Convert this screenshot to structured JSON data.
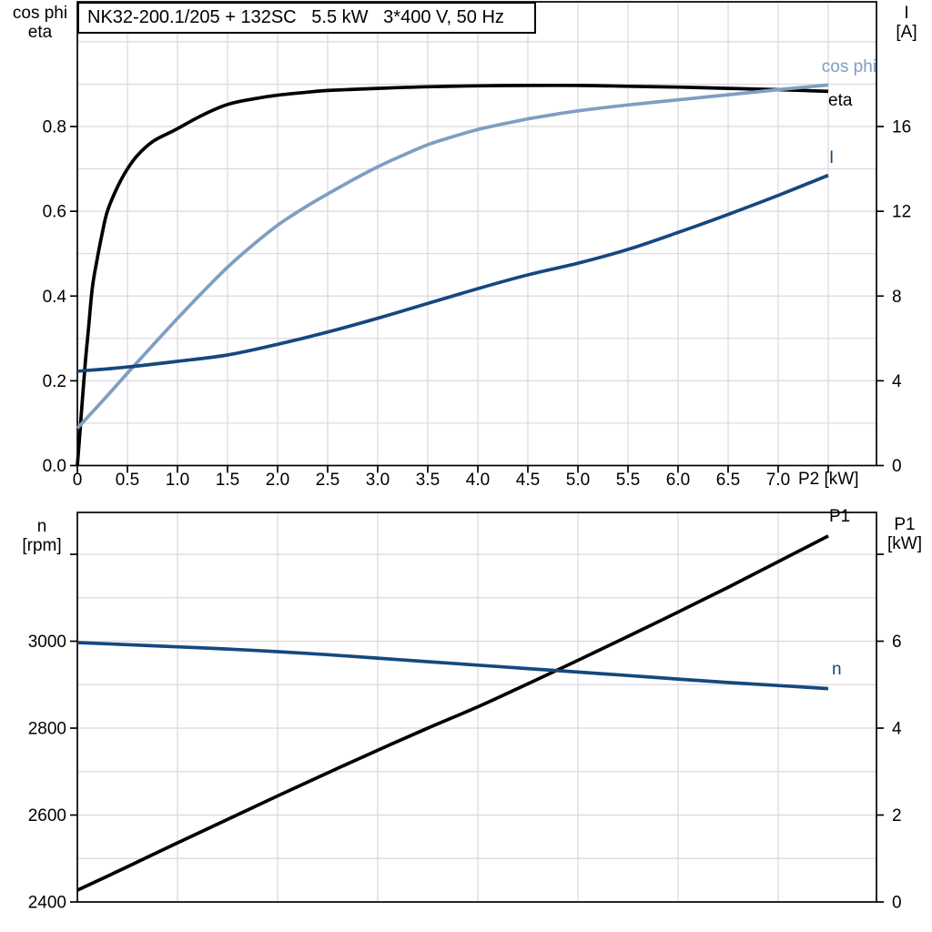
{
  "title": "NK32-200.1/205 + 132SC   5.5 kW   3*400 V, 50 Hz",
  "colors": {
    "black": "#000000",
    "light_blue": "#7E9EC3",
    "dark_blue": "#15487E",
    "grid": "#D9D9DC",
    "frame": "#000000",
    "background": "#FFFFFF"
  },
  "chart_data": [
    {
      "type": "line",
      "title": "NK32-200.1/205 + 132SC   5.5 kW   3*400 V, 50 Hz",
      "xlabel": "P2 [kW]",
      "x_range": [
        0,
        7.982
      ],
      "grid": {
        "x_step": 0.5,
        "y_step": 0.1
      },
      "x_ticks": [
        {
          "v": 0,
          "label": "0"
        },
        {
          "v": 0.5,
          "label": "0.5"
        },
        {
          "v": 1,
          "label": "1.0"
        },
        {
          "v": 1.5,
          "label": "1.5"
        },
        {
          "v": 2,
          "label": "2.0"
        },
        {
          "v": 2.5,
          "label": "2.5"
        },
        {
          "v": 3,
          "label": "3.0"
        },
        {
          "v": 3.5,
          "label": "3.5"
        },
        {
          "v": 4,
          "label": "4.0"
        },
        {
          "v": 4.5,
          "label": "4.5"
        },
        {
          "v": 5,
          "label": "5.0"
        },
        {
          "v": 5.5,
          "label": "5.5"
        },
        {
          "v": 6,
          "label": "6.0"
        },
        {
          "v": 6.5,
          "label": "6.5"
        },
        {
          "v": 7,
          "label": "7.0"
        },
        {
          "v": 7.5,
          "label": ""
        }
      ],
      "left_axis": {
        "title_lines": [
          "cos phi",
          "eta"
        ],
        "range": [
          0,
          1.0943
        ],
        "ticks": [
          {
            "v": 0.0,
            "label": "0.0"
          },
          {
            "v": 0.2,
            "label": "0.2"
          },
          {
            "v": 0.4,
            "label": "0.4"
          },
          {
            "v": 0.6,
            "label": "0.6"
          },
          {
            "v": 0.8,
            "label": "0.8"
          }
        ]
      },
      "right_axis": {
        "title_lines": [
          "I",
          "[A]"
        ],
        "range": [
          0,
          21.886
        ],
        "ticks": [
          {
            "v": 0,
            "label": "0"
          },
          {
            "v": 4,
            "label": "4"
          },
          {
            "v": 8,
            "label": "8"
          },
          {
            "v": 12,
            "label": "12"
          },
          {
            "v": 16,
            "label": "16"
          }
        ]
      },
      "series": [
        {
          "name": "eta",
          "label": "eta",
          "axis": "left",
          "color_key": "black",
          "points": [
            [
              0,
              0
            ],
            [
              0.02,
              0.06
            ],
            [
              0.05,
              0.155
            ],
            [
              0.08,
              0.245
            ],
            [
              0.11,
              0.32
            ],
            [
              0.15,
              0.42
            ],
            [
              0.2,
              0.49
            ],
            [
              0.25,
              0.55
            ],
            [
              0.3,
              0.6
            ],
            [
              0.4,
              0.657
            ],
            [
              0.5,
              0.7
            ],
            [
              0.6,
              0.732
            ],
            [
              0.75,
              0.764
            ],
            [
              0.9,
              0.783
            ],
            [
              1.0,
              0.795
            ],
            [
              1.25,
              0.827
            ],
            [
              1.5,
              0.852
            ],
            [
              1.75,
              0.865
            ],
            [
              2.0,
              0.874
            ],
            [
              2.25,
              0.88
            ],
            [
              2.5,
              0.885
            ],
            [
              3.0,
              0.89
            ],
            [
              3.5,
              0.894
            ],
            [
              4.0,
              0.896
            ],
            [
              4.5,
              0.897
            ],
            [
              5.0,
              0.897
            ],
            [
              5.5,
              0.895
            ],
            [
              6.0,
              0.893
            ],
            [
              6.5,
              0.89
            ],
            [
              7.0,
              0.887
            ],
            [
              7.5,
              0.883
            ]
          ]
        },
        {
          "name": "cos phi",
          "label": "cos phi",
          "axis": "left",
          "color_key": "light_blue",
          "points": [
            [
              0,
              0.088
            ],
            [
              0.25,
              0.152
            ],
            [
              0.5,
              0.218
            ],
            [
              0.75,
              0.283
            ],
            [
              1.0,
              0.347
            ],
            [
              1.25,
              0.409
            ],
            [
              1.5,
              0.468
            ],
            [
              1.75,
              0.52
            ],
            [
              2.0,
              0.567
            ],
            [
              2.25,
              0.606
            ],
            [
              2.5,
              0.641
            ],
            [
              2.75,
              0.674
            ],
            [
              3.0,
              0.705
            ],
            [
              3.25,
              0.732
            ],
            [
              3.5,
              0.757
            ],
            [
              3.75,
              0.776
            ],
            [
              4.0,
              0.793
            ],
            [
              4.25,
              0.806
            ],
            [
              4.5,
              0.818
            ],
            [
              4.75,
              0.828
            ],
            [
              5.0,
              0.837
            ],
            [
              5.5,
              0.851
            ],
            [
              6.0,
              0.863
            ],
            [
              6.5,
              0.875
            ],
            [
              7.0,
              0.887
            ],
            [
              7.5,
              0.898
            ]
          ]
        },
        {
          "name": "I",
          "label": "I",
          "axis": "right",
          "color_key": "dark_blue",
          "points": [
            [
              0,
              4.45
            ],
            [
              0.5,
              4.65
            ],
            [
              1.0,
              4.92
            ],
            [
              1.5,
              5.22
            ],
            [
              2.0,
              5.72
            ],
            [
              2.5,
              6.3
            ],
            [
              3.0,
              6.95
            ],
            [
              3.5,
              7.65
            ],
            [
              4.0,
              8.35
            ],
            [
              4.5,
              9.0
            ],
            [
              5.0,
              9.55
            ],
            [
              5.5,
              10.2
            ],
            [
              6.0,
              11.0
            ],
            [
              6.5,
              11.85
            ],
            [
              7.0,
              12.75
            ],
            [
              7.5,
              13.7
            ]
          ]
        }
      ]
    },
    {
      "type": "line",
      "title": "",
      "xlabel": "",
      "x_range": [
        0,
        7.982
      ],
      "grid": {
        "x_step": 1.0,
        "y_step": 100
      },
      "x_ticks": [],
      "left_axis": {
        "title_lines": [
          "n",
          "[rpm]"
        ],
        "range": [
          2400,
          3296.4
        ],
        "ticks": [
          {
            "v": 2400,
            "label": "2400"
          },
          {
            "v": 2600,
            "label": "2600"
          },
          {
            "v": 2800,
            "label": "2800"
          },
          {
            "v": 3000,
            "label": "3000"
          },
          {
            "v": 3200,
            "label": ""
          }
        ]
      },
      "right_axis": {
        "title_lines": [
          "P1",
          "[kW]"
        ],
        "range": [
          0,
          8.963
        ],
        "ticks": [
          {
            "v": 0,
            "label": "0"
          },
          {
            "v": 2,
            "label": "2"
          },
          {
            "v": 4,
            "label": "4"
          },
          {
            "v": 6,
            "label": "6"
          },
          {
            "v": 8,
            "label": ""
          }
        ]
      },
      "series": [
        {
          "name": "P1",
          "label": "P1",
          "axis": "right",
          "color_key": "black",
          "points": [
            [
              0,
              0.27
            ],
            [
              0.5,
              0.81
            ],
            [
              1.0,
              1.36
            ],
            [
              1.5,
              1.9
            ],
            [
              2.0,
              2.44
            ],
            [
              2.5,
              2.97
            ],
            [
              3.0,
              3.49
            ],
            [
              3.5,
              4.0
            ],
            [
              4.0,
              4.49
            ],
            [
              4.5,
              5.02
            ],
            [
              5.0,
              5.56
            ],
            [
              5.5,
              6.11
            ],
            [
              6.0,
              6.67
            ],
            [
              6.5,
              7.24
            ],
            [
              7.0,
              7.83
            ],
            [
              7.5,
              8.42
            ]
          ]
        },
        {
          "name": "n",
          "label": "n",
          "axis": "left",
          "color_key": "dark_blue",
          "points": [
            [
              0,
              2997
            ],
            [
              0.5,
              2992
            ],
            [
              1.0,
              2987
            ],
            [
              1.5,
              2982
            ],
            [
              2.0,
              2976
            ],
            [
              2.5,
              2969
            ],
            [
              3.0,
              2961
            ],
            [
              3.5,
              2953
            ],
            [
              4.0,
              2945
            ],
            [
              4.5,
              2937
            ],
            [
              5.0,
              2929
            ],
            [
              5.5,
              2921
            ],
            [
              6.0,
              2913
            ],
            [
              6.5,
              2905
            ],
            [
              7.0,
              2898
            ],
            [
              7.5,
              2891
            ]
          ]
        }
      ]
    }
  ]
}
